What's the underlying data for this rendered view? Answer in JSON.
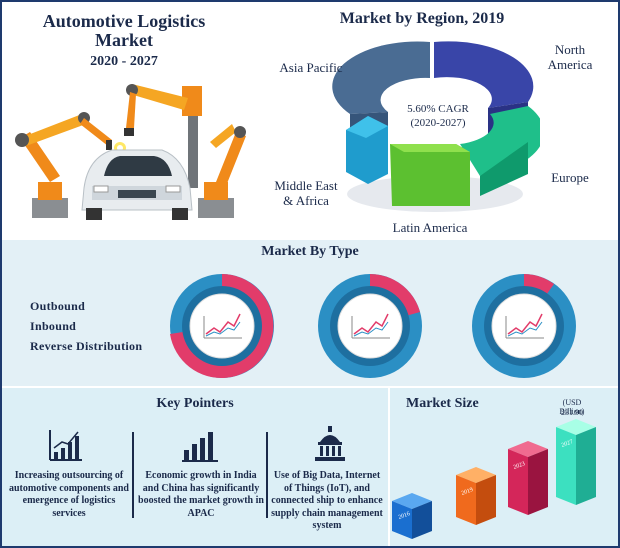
{
  "header": {
    "title": "Automotive Logistics Market",
    "years": "2020 - 2027"
  },
  "region_chart": {
    "title": "Market by Region, 2019",
    "center_line1": "5.60% CAGR",
    "center_line2": "(2020-2027)",
    "labels": {
      "north_america": "North America",
      "asia_pacific": "Asia Pacific",
      "europe": "Europe",
      "middle_east_africa": "Middle East & Africa",
      "latin_america": "Latin America"
    }
  },
  "market_by_type": {
    "title": "Market By Type",
    "legend": [
      "Outbound",
      "Inbound",
      "Reverse Distribution"
    ],
    "colors": {
      "outer_highlight": "#e23c6a",
      "outer_base": "#2b8fc4",
      "inner_ring": "#1e6fa0"
    }
  },
  "key_pointers": {
    "title": "Key Pointers",
    "items": [
      {
        "icon": "trend-chart-icon",
        "text": "Increasing outsourcing of automotive components and emergence of logistics services"
      },
      {
        "icon": "bar-chart-icon",
        "text": "Economic growth in India and China has significantly boosted the market growth in APAC"
      },
      {
        "icon": "capitol-building-icon",
        "text": "Use of Big Data, Internet of Things (IoT), and connected ship to enhance supply chain management system"
      }
    ]
  },
  "market_size": {
    "title": "Market Size",
    "unit": "(USD Billion)",
    "value_label": "231.90",
    "bars": [
      {
        "year": "2016",
        "color": "#1a6fd0"
      },
      {
        "year": "2019",
        "color": "#f06a1d"
      },
      {
        "year": "2023",
        "color": "#d4265a"
      },
      {
        "year": "2027",
        "color": "#3ce0c0"
      }
    ]
  }
}
